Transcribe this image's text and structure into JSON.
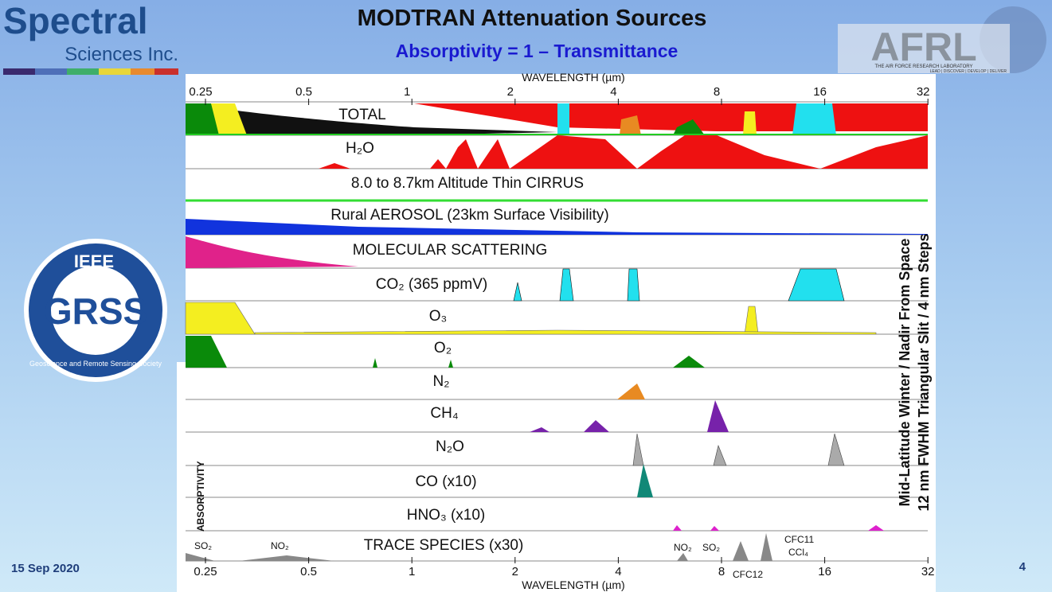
{
  "header": {
    "title": "MODTRAN Attenuation Sources",
    "subtitle": "Absorptivity = 1 – Transmittance"
  },
  "logos": {
    "spectral": {
      "name": "Spectral",
      "sub": "Sciences Inc."
    },
    "afrl": {
      "name": "AFRL",
      "sub": "THE AIR FORCE RESEARCH LABORATORY",
      "motto": "LEAD | DISCOVER | DEVELOP | DELIVER"
    },
    "grss": {
      "name": "GRSS",
      "ieee": "IEEE",
      "society": "Geoscience and Remote Sensing Society"
    }
  },
  "chart": {
    "x_label": "WAVELENGTH (µm)",
    "y_label": "ABSORPTIVITY",
    "x_ticks": [
      0.25,
      0.5,
      1,
      2,
      4,
      8,
      16,
      32
    ],
    "panels": [
      "TOTAL",
      "H₂O",
      "8.0 to 8.7km Altitude Thin CIRRUS",
      "Rural AEROSOL (23km Surface Visibility)",
      "MOLECULAR SCATTERING",
      "CO₂ (365 ppmV)",
      "O₃",
      "O₂",
      "N₂",
      "CH₄",
      "N₂O",
      "CO (x10)",
      "HNO₃ (x10)",
      "TRACE SPECIES (x30)"
    ],
    "notes": [
      "Mid-Latitude Winter / Nadir From Space",
      "12 nm FWHM Triangular Slit / 4 nm Steps"
    ],
    "trace_annotations": [
      "SO₂",
      "NO₂",
      "NO₂",
      "SO₂",
      "CFC11",
      "CCl₄",
      "CFC12"
    ]
  },
  "footer": {
    "date": "15 Sep 2020",
    "page": "4"
  }
}
